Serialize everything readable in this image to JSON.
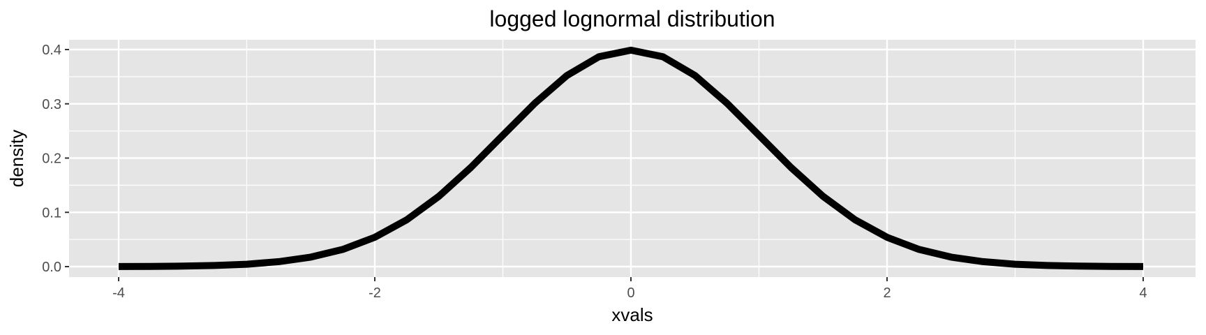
{
  "chart_data": {
    "type": "line",
    "title": "logged lognormal distribution",
    "xlabel": "xvals",
    "ylabel": "density",
    "xlim": [
      -4,
      4
    ],
    "ylim": [
      0,
      0.4
    ],
    "x_ticks": [
      -4,
      -2,
      0,
      2,
      4
    ],
    "x_tick_labels": [
      "-4",
      "-2",
      "0",
      "2",
      "4"
    ],
    "y_ticks": [
      0,
      0.1,
      0.2,
      0.3,
      0.4
    ],
    "y_tick_labels": [
      "0.0",
      "0.1",
      "0.2",
      "0.3",
      "0.4"
    ],
    "grid": true,
    "legend": "none",
    "colors": {
      "panel_background": "#e5e5e5",
      "grid": "#ffffff",
      "line": "#000000",
      "tick_text": "#4d4d4d",
      "tick_mark": "#333333"
    },
    "series": [
      {
        "x": [
          -4.0,
          -3.75,
          -3.5,
          -3.25,
          -3.0,
          -2.75,
          -2.5,
          -2.25,
          -2.0,
          -1.75,
          -1.5,
          -1.25,
          -1.0,
          -0.75,
          -0.5,
          -0.25,
          0.0,
          0.25,
          0.5,
          0.75,
          1.0,
          1.25,
          1.5,
          1.75,
          2.0,
          2.25,
          2.5,
          2.75,
          3.0,
          3.25,
          3.5,
          3.75,
          4.0
        ],
        "y": [
          0.0001,
          0.0004,
          0.0009,
          0.002,
          0.0044,
          0.0091,
          0.0175,
          0.0317,
          0.054,
          0.0863,
          0.1295,
          0.1826,
          0.242,
          0.3011,
          0.3521,
          0.3867,
          0.3989,
          0.3867,
          0.3521,
          0.3011,
          0.242,
          0.1826,
          0.1295,
          0.0863,
          0.054,
          0.0317,
          0.0175,
          0.0091,
          0.0044,
          0.002,
          0.0009,
          0.0004,
          0.0001
        ]
      }
    ]
  }
}
